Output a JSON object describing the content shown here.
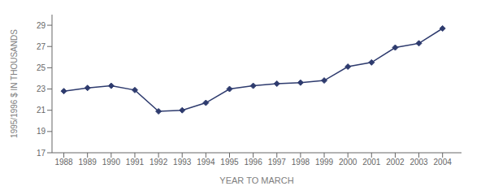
{
  "chart_data": {
    "type": "line",
    "x": [
      1988,
      1989,
      1990,
      1991,
      1992,
      1993,
      1994,
      1995,
      1996,
      1997,
      1998,
      1999,
      2000,
      2001,
      2002,
      2003,
      2004
    ],
    "values": [
      22.8,
      23.1,
      23.3,
      22.9,
      20.9,
      21.0,
      21.7,
      23.0,
      23.3,
      23.5,
      23.6,
      23.8,
      25.1,
      25.5,
      26.9,
      27.3,
      28.7
    ],
    "color": "#2e3b6e",
    "marker": "diamond",
    "xlabel": "YEAR TO MARCH",
    "ylabel": "1995/1996 $ IN THOUSANDS",
    "xlim": [
      1987.5,
      2004.8
    ],
    "xticks": [
      1988,
      1989,
      1990,
      1991,
      1992,
      1993,
      1994,
      1995,
      1996,
      1997,
      1998,
      1999,
      2000,
      2001,
      2002,
      2003,
      2004
    ],
    "ylim": [
      17,
      30
    ],
    "yticks": [
      17,
      19,
      21,
      23,
      25,
      27,
      29
    ],
    "grid": false
  }
}
